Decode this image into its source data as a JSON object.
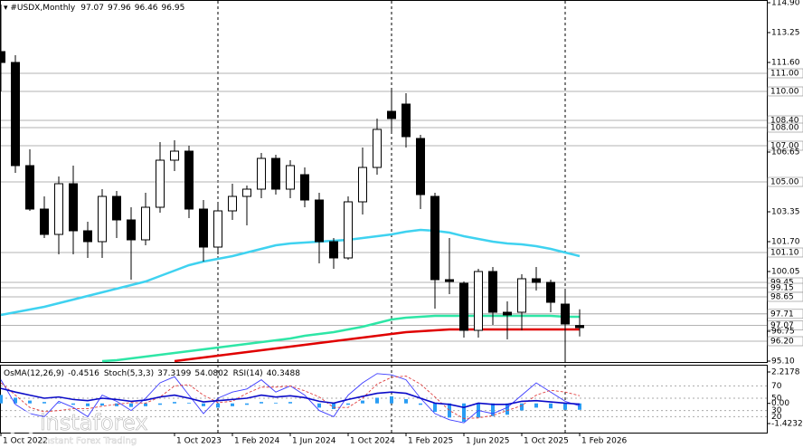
{
  "chart_data": [
    {
      "type": "candlestick",
      "title": "#USDX,Monthly",
      "categories": [
        "1 Oct 2022",
        null,
        null,
        null,
        null,
        null,
        null,
        null,
        null,
        null,
        null,
        null,
        "1 Oct 2023",
        null,
        null,
        null,
        "1 Feb 2024",
        null,
        null,
        null,
        "1 Jun 2024",
        null,
        null,
        null,
        "1 Oct 2024",
        null,
        null,
        null,
        "1 Feb 2025",
        null,
        null,
        null,
        "1 Jun 2025",
        null,
        null,
        null,
        "1 Oct 2025",
        null,
        null,
        null,
        "1 Feb 2026"
      ],
      "open": [
        112.2,
        111.6,
        105.9,
        103.5,
        102.1,
        104.9,
        102.3,
        101.7,
        104.2,
        102.9,
        101.8,
        103.6,
        106.2,
        106.7,
        103.5,
        101.4,
        103.4,
        104.2,
        104.6,
        106.3,
        104.6,
        105.4,
        104.0,
        101.7,
        100.8,
        103.9,
        105.8,
        108.9,
        109.3,
        107.4,
        104.2,
        99.6,
        99.4,
        96.8,
        100.05,
        97.8,
        97.8,
        99.65,
        99.45,
        98.25,
        97.07
      ],
      "high": [
        114.8,
        112.0,
        106.8,
        104.2,
        105.3,
        105.9,
        102.8,
        104.6,
        104.5,
        103.6,
        104.4,
        107.2,
        107.3,
        107.0,
        104.0,
        103.8,
        104.9,
        104.8,
        106.6,
        106.5,
        106.2,
        105.8,
        104.4,
        101.9,
        104.2,
        106.9,
        108.5,
        110.2,
        109.9,
        107.6,
        104.4,
        101.9,
        99.5,
        100.2,
        100.3,
        98.4,
        99.9,
        100.3,
        99.6,
        99.0,
        97.96
      ],
      "low": [
        110.0,
        105.5,
        103.4,
        101.9,
        101.0,
        101.0,
        100.8,
        100.8,
        101.9,
        99.6,
        101.5,
        103.3,
        105.6,
        103.0,
        100.6,
        101.0,
        102.9,
        102.6,
        104.1,
        104.3,
        104.1,
        103.6,
        100.5,
        100.2,
        100.7,
        103.2,
        105.4,
        107.8,
        106.9,
        103.5,
        98.0,
        98.8,
        96.4,
        96.4,
        97.1,
        96.3,
        96.8,
        99.0,
        97.8,
        95.2,
        96.46
      ],
      "close": [
        111.6,
        105.9,
        103.5,
        102.1,
        104.9,
        102.3,
        101.7,
        104.2,
        102.9,
        101.8,
        103.6,
        106.2,
        106.7,
        103.5,
        101.4,
        103.4,
        104.2,
        104.6,
        106.3,
        104.6,
        105.9,
        104.0,
        101.7,
        100.8,
        103.9,
        105.8,
        107.9,
        108.5,
        107.5,
        104.3,
        99.6,
        99.5,
        96.8,
        100.05,
        97.8,
        97.65,
        99.65,
        99.45,
        98.35,
        97.15,
        96.95
      ],
      "up_color": "#ffffff",
      "down_color": "#000000",
      "series": [
        {
          "color": "#3fd2f0",
          "values": [
            97.65,
            97.8,
            97.95,
            98.1,
            98.3,
            98.5,
            98.7,
            98.9,
            99.1,
            99.3,
            99.5,
            99.8,
            100.1,
            100.4,
            100.6,
            100.75,
            100.9,
            101.1,
            101.3,
            101.5,
            101.6,
            101.65,
            101.7,
            101.75,
            101.8,
            101.9,
            102.0,
            102.1,
            102.25,
            102.35,
            102.3,
            102.2,
            102.0,
            101.85,
            101.7,
            101.6,
            101.55,
            101.45,
            101.3,
            101.1,
            100.9
          ]
        },
        {
          "color": "#2ee6a6",
          "values": [
            null,
            null,
            null,
            null,
            null,
            null,
            null,
            95.1,
            95.15,
            95.25,
            95.35,
            95.45,
            95.55,
            95.65,
            95.75,
            95.85,
            95.95,
            96.05,
            96.15,
            96.25,
            96.35,
            96.5,
            96.6,
            96.7,
            96.85,
            97.0,
            97.2,
            97.4,
            97.5,
            97.55,
            97.6,
            97.6,
            97.6,
            97.6,
            97.6,
            97.6,
            97.6,
            97.6,
            97.6,
            97.55,
            97.55
          ]
        },
        {
          "color": "#e00000",
          "values": [
            null,
            null,
            null,
            null,
            null,
            null,
            null,
            null,
            null,
            null,
            null,
            null,
            95.1,
            95.2,
            95.3,
            95.4,
            95.5,
            95.6,
            95.7,
            95.8,
            95.9,
            96.0,
            96.1,
            96.2,
            96.3,
            96.4,
            96.5,
            96.6,
            96.7,
            96.75,
            96.8,
            96.85,
            96.85,
            96.85,
            96.85,
            96.85,
            96.85,
            96.85,
            96.85,
            96.85,
            96.85
          ]
        }
      ],
      "ylim": [
        95.1,
        114.9
      ],
      "yticks": [
        {
          "value": 114.9,
          "label": "114.90"
        },
        {
          "value": 113.25,
          "label": "113.25"
        },
        {
          "value": 111.6,
          "label": "111.60"
        },
        {
          "value": 106.65,
          "label": "106.65"
        },
        {
          "value": 103.35,
          "label": "103.35"
        },
        {
          "value": 101.7,
          "label": "101.70"
        },
        {
          "value": 100.05,
          "label": "100.05"
        },
        {
          "value": 96.75,
          "label": "96.75"
        },
        {
          "value": 95.1,
          "label": "95.10"
        }
      ],
      "levels": [
        {
          "value": 111.0,
          "label": "111.00"
        },
        {
          "value": 110.0,
          "label": "110.00"
        },
        {
          "value": 108.4,
          "label": "108.40"
        },
        {
          "value": 108.0,
          "label": "108.00"
        },
        {
          "value": 107.0,
          "label": "107.00"
        },
        {
          "value": 105.0,
          "label": "105.00"
        },
        {
          "value": 101.1,
          "label": "101.10"
        },
        {
          "value": 99.45,
          "label": "99.45"
        },
        {
          "value": 99.15,
          "label": "99.15"
        },
        {
          "value": 98.65,
          "label": "98.65"
        },
        {
          "value": 97.71,
          "label": "97.71"
        },
        {
          "value": 97.07,
          "label": "97.07"
        },
        {
          "value": 96.2,
          "label": "96.20"
        }
      ]
    },
    {
      "type": "oscillator",
      "series": [
        {
          "name": "OsMA(12,26,9)",
          "color": "#2a9df4",
          "axis": "y2",
          "values": [
            0.6,
            0.4,
            0.2,
            0.1,
            0.05,
            -0.1,
            -0.2,
            -0.15,
            -0.2,
            -0.25,
            -0.2,
            -0.1,
            0.1,
            0.05,
            -0.2,
            -0.3,
            -0.2,
            -0.1,
            0.1,
            0.05,
            0.1,
            0.0,
            -0.3,
            -0.4,
            -0.1,
            0.2,
            0.4,
            0.5,
            0.3,
            -0.1,
            -0.6,
            -1.0,
            -1.3,
            -1.0,
            -0.9,
            -0.8,
            -0.5,
            -0.3,
            -0.35,
            -0.45,
            -0.4516
          ]
        },
        {
          "name": "Stoch(5,3,3)",
          "color": "#3c3cff",
          "values": [
            80,
            40,
            25,
            20,
            45,
            35,
            20,
            55,
            45,
            30,
            50,
            75,
            85,
            55,
            25,
            50,
            60,
            65,
            80,
            60,
            70,
            55,
            30,
            20,
            55,
            75,
            90,
            88,
            80,
            50,
            25,
            15,
            10,
            30,
            25,
            35,
            55,
            75,
            60,
            45,
            37.3199
          ]
        },
        {
          "color": "#e04040",
          "values": [
            75,
            55,
            35,
            28,
            30,
            33,
            33,
            37,
            40,
            43,
            42,
            52,
            70,
            72,
            55,
            43,
            45,
            58,
            68,
            68,
            70,
            62,
            52,
            35,
            35,
            50,
            73,
            84,
            86,
            73,
            52,
            30,
            17,
            18,
            22,
            30,
            38,
            55,
            63,
            60,
            54.0802
          ]
        },
        {
          "name": "RSI(14)",
          "color": "#0a0ac8",
          "values": [
            66,
            60,
            55,
            50,
            52,
            48,
            46,
            50,
            48,
            45,
            47,
            52,
            55,
            50,
            44,
            46,
            48,
            50,
            55,
            52,
            54,
            51,
            45,
            42,
            48,
            53,
            58,
            60,
            58,
            50,
            42,
            40,
            35,
            42,
            40,
            40,
            45,
            46,
            44,
            42,
            40.3488
          ]
        }
      ],
      "ylim": [
        0,
        100
      ],
      "yticks": [
        20,
        30,
        50,
        70
      ],
      "y2lim": [
        -1.4232,
        2.2178
      ],
      "y2ticks": [
        -1.4232,
        {
          "value": 0,
          "label": "0.00"
        },
        2.2178
      ]
    }
  ],
  "watermark": {
    "brand": "instaforex",
    "tagline": "Instant Forex Trading"
  }
}
